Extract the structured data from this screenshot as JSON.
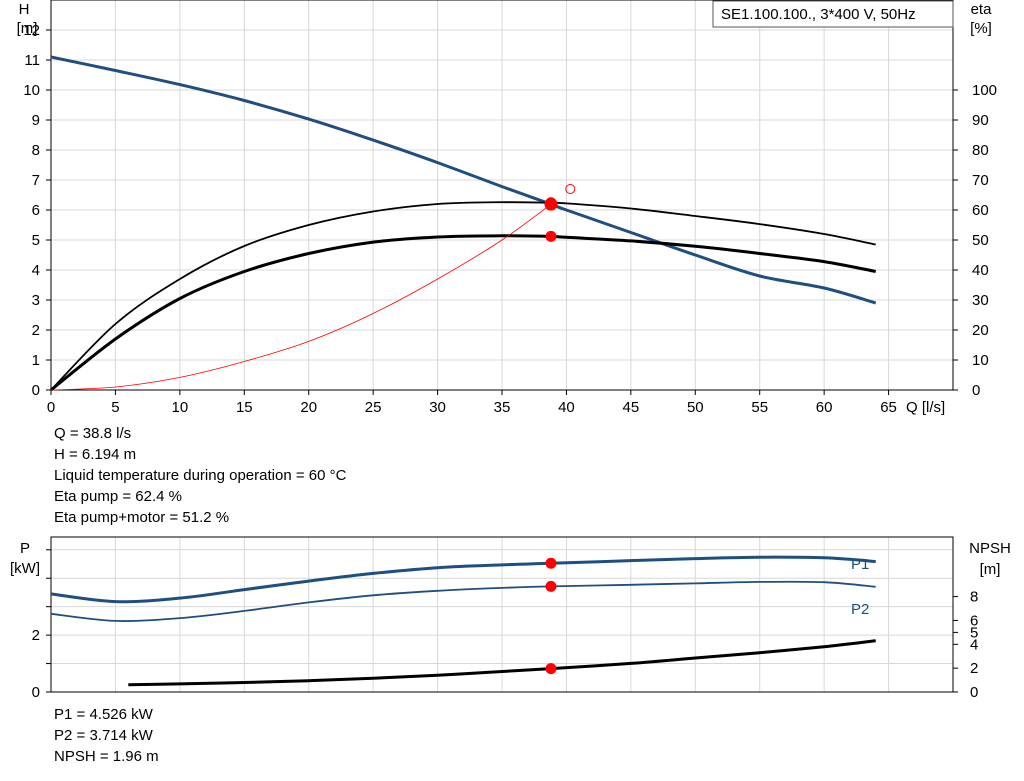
{
  "chart_data": [
    {
      "type": "line",
      "title": "SE1.100.100., 3*400 V, 50Hz",
      "xlabel": "Q [l/s]",
      "ylabel": [
        "H",
        "[m]"
      ],
      "y2label": [
        "eta",
        "[%]"
      ],
      "xlim": [
        0,
        70
      ],
      "ylim": [
        0,
        13
      ],
      "y2lim": [
        0,
        130
      ],
      "x_ticks": [
        0,
        5,
        10,
        15,
        20,
        25,
        30,
        35,
        40,
        45,
        50,
        55,
        60,
        65
      ],
      "y_ticks": [
        0,
        1,
        2,
        3,
        4,
        5,
        6,
        7,
        8,
        9,
        10,
        11,
        12
      ],
      "y2_ticks": [
        0,
        10,
        20,
        30,
        40,
        50,
        60,
        70,
        80,
        90,
        100
      ],
      "grid": true,
      "series": [
        {
          "role": "head",
          "axis": "left",
          "color": "#1f4e80",
          "x": [
            0,
            5,
            10,
            15,
            20,
            25,
            30,
            35,
            38.8,
            40,
            45,
            50,
            55,
            60,
            64
          ],
          "y": [
            11.1,
            10.65,
            10.18,
            9.65,
            9.03,
            8.33,
            7.58,
            6.78,
            6.194,
            6.0,
            5.25,
            4.5,
            3.8,
            3.4,
            2.9
          ]
        },
        {
          "role": "eta-pump",
          "axis": "right",
          "color": "#000000",
          "x": [
            0,
            5,
            10,
            15,
            20,
            25,
            30,
            35,
            38.8,
            40,
            45,
            50,
            55,
            60,
            64
          ],
          "y": [
            0,
            22,
            37,
            48,
            55,
            59.5,
            62,
            62.6,
            62.4,
            62.2,
            60.5,
            58,
            55.3,
            52,
            48.5
          ]
        },
        {
          "role": "eta-pump-motor",
          "axis": "right",
          "color": "#000000",
          "x": [
            0,
            5,
            10,
            15,
            20,
            25,
            30,
            35,
            38.8,
            40,
            45,
            50,
            55,
            60,
            64
          ],
          "y": [
            0,
            17,
            30.5,
            39.5,
            45.5,
            49.3,
            51,
            51.4,
            51.2,
            50.9,
            49.7,
            47.9,
            45.5,
            42.8,
            39.5
          ]
        },
        {
          "role": "system-curve",
          "axis": "left",
          "color": "#ff0000",
          "x": [
            0,
            5,
            10,
            15,
            20,
            25,
            30,
            35,
            38.8
          ],
          "y": [
            0,
            0.1,
            0.42,
            0.95,
            1.62,
            2.55,
            3.7,
            5.0,
            6.194
          ]
        }
      ],
      "operating_point": {
        "x": 38.8,
        "H": 6.194,
        "eta_pump": 62.4,
        "eta_pump_motor": 51.2,
        "color": "#ff0000"
      },
      "marker_open": {
        "x": 40.3,
        "H": 6.7
      }
    },
    {
      "type": "line",
      "ylabel": [
        "P",
        "[kW]"
      ],
      "y2label": [
        "NPSH",
        "[m]"
      ],
      "xlim": [
        0,
        70
      ],
      "ylim": [
        0,
        5.45
      ],
      "y2lim": [
        0,
        13
      ],
      "y_ticks": [
        0,
        2
      ],
      "y2_ticks": [
        0,
        2,
        4,
        5,
        6,
        8
      ],
      "grid": true,
      "series": [
        {
          "name": "P1",
          "axis": "left",
          "color": "#1f4e80",
          "x": [
            0,
            5,
            10,
            15,
            20,
            25,
            30,
            35,
            38.8,
            45,
            50,
            55,
            60,
            64
          ],
          "y": [
            3.45,
            3.18,
            3.3,
            3.6,
            3.9,
            4.17,
            4.37,
            4.47,
            4.526,
            4.62,
            4.69,
            4.74,
            4.72,
            4.59
          ]
        },
        {
          "name": "P2",
          "axis": "left",
          "color": "#1f4e80",
          "x": [
            0,
            5,
            10,
            15,
            20,
            25,
            30,
            35,
            38.8,
            45,
            50,
            55,
            60,
            64
          ],
          "y": [
            2.75,
            2.5,
            2.6,
            2.85,
            3.15,
            3.4,
            3.56,
            3.66,
            3.714,
            3.77,
            3.82,
            3.87,
            3.86,
            3.7
          ]
        },
        {
          "role": "npsh",
          "axis": "right",
          "color": "#000000",
          "x": [
            6,
            10,
            15,
            20,
            25,
            30,
            35,
            38.8,
            45,
            50,
            55,
            60,
            64
          ],
          "y": [
            0.6,
            0.68,
            0.8,
            0.95,
            1.15,
            1.4,
            1.72,
            1.96,
            2.4,
            2.85,
            3.3,
            3.8,
            4.3
          ]
        }
      ],
      "operating_point": {
        "x": 38.8,
        "P1": 4.526,
        "P2": 3.714,
        "NPSH": 1.96,
        "color": "#ff0000"
      }
    }
  ],
  "info_top": [
    "Q = 38.8 l/s",
    "H = 6.194 m",
    "Liquid temperature during operation = 60 °C",
    "Eta pump = 62.4 %",
    "Eta pump+motor = 51.2 %"
  ],
  "info_bottom": [
    "P1 = 4.526 kW",
    "P2 = 3.714 kW",
    "NPSH = 1.96 m"
  ]
}
